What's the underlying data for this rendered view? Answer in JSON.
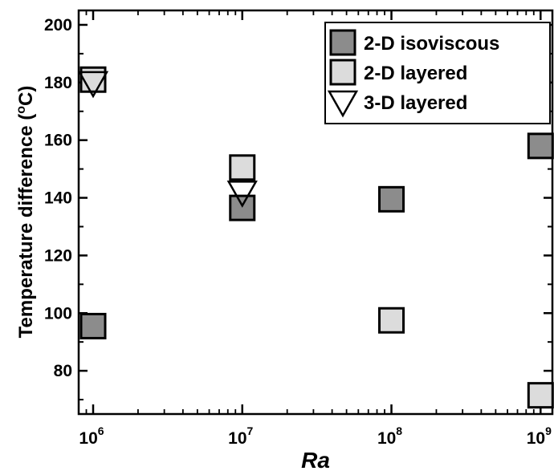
{
  "chart_data": {
    "type": "scatter",
    "xscale": "log",
    "xlim": [
      800000,
      1200000000
    ],
    "ylim": [
      65,
      205
    ],
    "xticks": [
      {
        "value": 1000000,
        "base": "10",
        "exp": "6"
      },
      {
        "value": 10000000,
        "base": "10",
        "exp": "7"
      },
      {
        "value": 100000000,
        "base": "10",
        "exp": "8"
      },
      {
        "value": 1000000000,
        "base": "10",
        "exp": "9"
      }
    ],
    "yticks": [
      80,
      100,
      120,
      140,
      160,
      180,
      200
    ],
    "xlabel": "Ra",
    "ylabel_main": "Temperature difference (",
    "ylabel_sup": "o",
    "ylabel_end": "C)",
    "grid": false,
    "legend_position": "top-right",
    "series": [
      {
        "name": "2-D isoviscous",
        "marker": "square",
        "fill": "#8c8c8c",
        "points": [
          {
            "x": 1000000,
            "y": 95.5
          },
          {
            "x": 10000000,
            "y": 136.5
          },
          {
            "x": 100000000,
            "y": 139.5
          },
          {
            "x": 1000000000,
            "y": 158
          }
        ]
      },
      {
        "name": "2-D layered",
        "marker": "square",
        "fill": "#dcdcdc",
        "points": [
          {
            "x": 1000000,
            "y": 181
          },
          {
            "x": 10000000,
            "y": 150.5
          },
          {
            "x": 100000000,
            "y": 97.5
          },
          {
            "x": 1000000000,
            "y": 71.5
          }
        ]
      },
      {
        "name": "3-D layered",
        "marker": "triangle-down",
        "fill": "#ffffff",
        "points": [
          {
            "x": 1000000,
            "y": 180
          },
          {
            "x": 10000000,
            "y": 142
          }
        ]
      }
    ]
  }
}
